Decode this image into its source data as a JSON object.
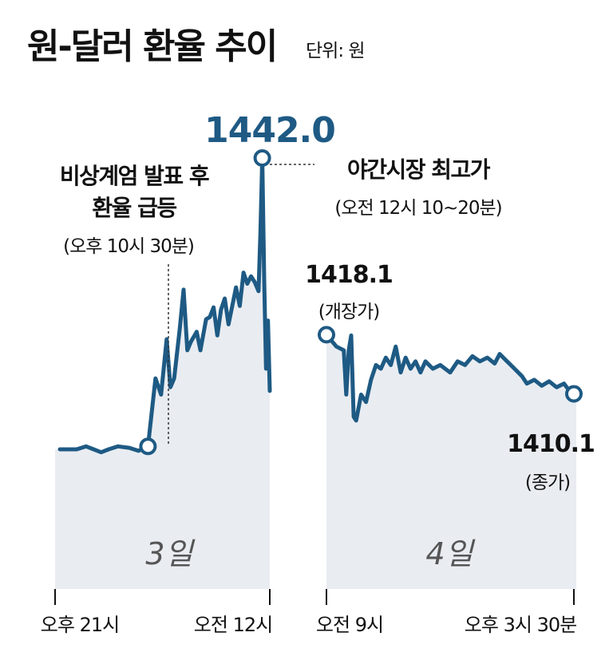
{
  "title": "원-달러 환율 추이",
  "unit_label": "단위: 원",
  "colors": {
    "line": "#1e5a84",
    "area": "#e9edf2",
    "text": "#111111",
    "peak": "#1e5a84"
  },
  "chart_data": {
    "type": "area",
    "title": "원-달러 환율 추이",
    "unit": "원",
    "panels": [
      {
        "day_label": "3일",
        "x_start_label": "오후 21시",
        "x_end_label": "오전 12시",
        "series": [
          {
            "x": 0,
            "y": 1402.6
          },
          {
            "x": 9,
            "y": 1402.6
          },
          {
            "x": 14,
            "y": 1403.0
          },
          {
            "x": 18,
            "y": 1402.6
          },
          {
            "x": 22,
            "y": 1402.2
          },
          {
            "x": 26,
            "y": 1402.6
          },
          {
            "x": 31,
            "y": 1403.0
          },
          {
            "x": 37,
            "y": 1402.8
          },
          {
            "x": 42,
            "y": 1402.4
          },
          {
            "x": 47,
            "y": 1403.0
          },
          {
            "x": 51,
            "y": 1412.2
          },
          {
            "x": 54,
            "y": 1410.0
          },
          {
            "x": 57,
            "y": 1417.5
          },
          {
            "x": 59,
            "y": 1411.0
          },
          {
            "x": 61,
            "y": 1412.2
          },
          {
            "x": 64,
            "y": 1419.0
          },
          {
            "x": 66,
            "y": 1424.2
          },
          {
            "x": 68,
            "y": 1416.0
          },
          {
            "x": 70,
            "y": 1417.2
          },
          {
            "x": 73,
            "y": 1418.5
          },
          {
            "x": 75,
            "y": 1416.0
          },
          {
            "x": 78,
            "y": 1420.2
          },
          {
            "x": 80,
            "y": 1420.5
          },
          {
            "x": 82,
            "y": 1421.8
          },
          {
            "x": 84,
            "y": 1418.0
          },
          {
            "x": 86,
            "y": 1421.5
          },
          {
            "x": 88,
            "y": 1423.0
          },
          {
            "x": 90,
            "y": 1419.5
          },
          {
            "x": 92,
            "y": 1422.0
          },
          {
            "x": 94,
            "y": 1424.5
          },
          {
            "x": 96,
            "y": 1422.0
          },
          {
            "x": 98,
            "y": 1426.5
          },
          {
            "x": 100,
            "y": 1425.0
          },
          {
            "x": 102,
            "y": 1426.0
          },
          {
            "x": 104,
            "y": 1425.2
          },
          {
            "x": 106,
            "y": 1424.0
          },
          {
            "x": 107,
            "y": 1432.0
          },
          {
            "x": 108,
            "y": 1442.0
          },
          {
            "x": 109,
            "y": 1425.5
          },
          {
            "x": 110,
            "y": 1413.5
          },
          {
            "x": 111,
            "y": 1420.0
          },
          {
            "x": 112,
            "y": 1410.5
          }
        ],
        "annotations": [
          {
            "text": "비상계엄 발표 후",
            "text2": "환율 급등",
            "sub": "(오후 10시 30분)"
          },
          {
            "value": "1442.0",
            "text": "야간시장 최고가",
            "sub": "(오전 12시 10~20분)"
          }
        ]
      },
      {
        "day_label": "4일",
        "x_start_label": "오전 9시",
        "x_end_label": "오후 3시 30분",
        "series": [
          {
            "x": 0,
            "y": 1418.1
          },
          {
            "x": 4,
            "y": 1416.5
          },
          {
            "x": 7,
            "y": 1416.0
          },
          {
            "x": 8,
            "y": 1410.0
          },
          {
            "x": 9,
            "y": 1416.0
          },
          {
            "x": 10,
            "y": 1418.0
          },
          {
            "x": 11,
            "y": 1407.0
          },
          {
            "x": 12,
            "y": 1406.5
          },
          {
            "x": 14,
            "y": 1410.0
          },
          {
            "x": 16,
            "y": 1409.0
          },
          {
            "x": 18,
            "y": 1412.0
          },
          {
            "x": 20,
            "y": 1414.0
          },
          {
            "x": 22,
            "y": 1413.5
          },
          {
            "x": 24,
            "y": 1415.0
          },
          {
            "x": 26,
            "y": 1414.0
          },
          {
            "x": 28,
            "y": 1416.5
          },
          {
            "x": 30,
            "y": 1413.0
          },
          {
            "x": 32,
            "y": 1415.0
          },
          {
            "x": 34,
            "y": 1413.5
          },
          {
            "x": 36,
            "y": 1414.5
          },
          {
            "x": 38,
            "y": 1413.0
          },
          {
            "x": 40,
            "y": 1414.5
          },
          {
            "x": 43,
            "y": 1413.5
          },
          {
            "x": 46,
            "y": 1414.0
          },
          {
            "x": 50,
            "y": 1413.0
          },
          {
            "x": 53,
            "y": 1414.5
          },
          {
            "x": 56,
            "y": 1414.0
          },
          {
            "x": 59,
            "y": 1415.2
          },
          {
            "x": 62,
            "y": 1414.5
          },
          {
            "x": 65,
            "y": 1415.0
          },
          {
            "x": 68,
            "y": 1414.2
          },
          {
            "x": 70,
            "y": 1415.5
          },
          {
            "x": 73,
            "y": 1414.5
          },
          {
            "x": 76,
            "y": 1413.5
          },
          {
            "x": 79,
            "y": 1412.5
          },
          {
            "x": 81,
            "y": 1411.5
          },
          {
            "x": 84,
            "y": 1412.0
          },
          {
            "x": 87,
            "y": 1411.2
          },
          {
            "x": 90,
            "y": 1411.8
          },
          {
            "x": 93,
            "y": 1411.0
          },
          {
            "x": 96,
            "y": 1411.5
          },
          {
            "x": 98,
            "y": 1410.6
          },
          {
            "x": 100,
            "y": 1410.1
          }
        ],
        "annotations": [
          {
            "value": "1418.1",
            "sub": "(개장가)"
          },
          {
            "value": "1410.1",
            "sub": "(종가)"
          }
        ]
      }
    ]
  }
}
